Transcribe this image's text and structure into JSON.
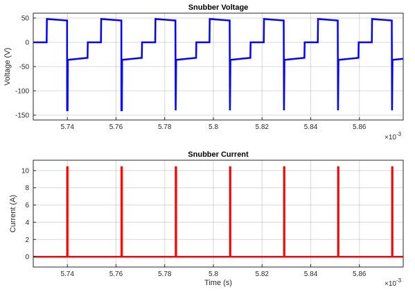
{
  "chart_data": [
    {
      "type": "line",
      "title": "Snubber Voltage",
      "xlabel": "",
      "ylabel": "Voltage (V)",
      "xlim": [
        5.726,
        5.878
      ],
      "ylim": [
        -160,
        60
      ],
      "x_multiplier_label": "×10",
      "x_multiplier_exp": "-3",
      "xticks": [
        5.74,
        5.76,
        5.78,
        5.8,
        5.82,
        5.84,
        5.86
      ],
      "xtick_labels": [
        "5.74",
        "5.76",
        "5.78",
        "5.8",
        "5.82",
        "5.84",
        "5.86"
      ],
      "yticks": [
        50,
        0,
        -50,
        -100,
        -150
      ],
      "ytick_labels": [
        "50",
        "0",
        "-50",
        "-100",
        "-150"
      ],
      "grid": true,
      "color": "#0000ff",
      "series": [
        {
          "x": [
            5.726,
            5.7315,
            5.7316,
            5.7398,
            5.7399,
            5.7399,
            5.7401,
            5.7402,
            5.7483,
            5.7484,
            5.7538,
            5.7539,
            5.7621,
            5.7622,
            5.7622,
            5.7624,
            5.7625,
            5.7706,
            5.7707,
            5.7761,
            5.7762,
            5.7844,
            5.7845,
            5.7845,
            5.7847,
            5.7848,
            5.7929,
            5.793,
            5.7984,
            5.7985,
            5.8067,
            5.8068,
            5.8068,
            5.807,
            5.8071,
            5.8152,
            5.8153,
            5.8207,
            5.8208,
            5.8289,
            5.829,
            5.829,
            5.8292,
            5.8293,
            5.8374,
            5.8375,
            5.8429,
            5.843,
            5.8511,
            5.8512,
            5.8512,
            5.8514,
            5.8515,
            5.8596,
            5.8597,
            5.8651,
            5.8652,
            5.8733,
            5.8734,
            5.8734,
            5.8736,
            5.8737,
            5.878
          ],
          "y": [
            0,
            0,
            48,
            45,
            45,
            -140,
            -140,
            -36,
            -32,
            0,
            0,
            48,
            45,
            45,
            -140,
            -140,
            -36,
            -32,
            0,
            0,
            48,
            45,
            -140,
            -140,
            -36,
            -36,
            -32,
            0,
            0,
            48,
            45,
            -140,
            -140,
            -36,
            -36,
            -32,
            0,
            0,
            48,
            45,
            -140,
            -140,
            -36,
            -36,
            -32,
            0,
            0,
            48,
            45,
            -140,
            -140,
            -36,
            -36,
            -32,
            0,
            0,
            48,
            45,
            -140,
            -140,
            -36,
            -36,
            -34
          ]
        }
      ]
    },
    {
      "type": "line",
      "title": "Snubber Current",
      "xlabel": "Time (s)",
      "ylabel": "Current (A)",
      "xlim": [
        5.726,
        5.878
      ],
      "ylim": [
        -1.2,
        11.2
      ],
      "x_multiplier_label": "×10",
      "x_multiplier_exp": "-3",
      "xticks": [
        5.74,
        5.76,
        5.78,
        5.8,
        5.82,
        5.84,
        5.86
      ],
      "xtick_labels": [
        "5.74",
        "5.76",
        "5.78",
        "5.8",
        "5.82",
        "5.84",
        "5.86"
      ],
      "yticks": [
        10,
        8,
        6,
        4,
        2,
        0
      ],
      "ytick_labels": [
        "10",
        "8",
        "6",
        "4",
        "2",
        "0"
      ],
      "grid": true,
      "color": "#ff0000",
      "series": [
        {
          "x": [
            5.726,
            5.7399,
            5.7399,
            5.7401,
            5.7401,
            5.7622,
            5.7622,
            5.7624,
            5.7624,
            5.7845,
            5.7845,
            5.7847,
            5.7847,
            5.8068,
            5.8068,
            5.807,
            5.807,
            5.829,
            5.829,
            5.8292,
            5.8292,
            5.8512,
            5.8512,
            5.8514,
            5.8514,
            5.8734,
            5.8734,
            5.8736,
            5.8736,
            5.878
          ],
          "y": [
            0,
            0,
            10.4,
            10.4,
            0,
            0,
            10.4,
            10.4,
            0,
            0,
            10.4,
            10.4,
            0,
            0,
            10.4,
            10.4,
            0,
            0,
            10.4,
            10.4,
            0,
            0,
            10.4,
            10.4,
            0,
            0,
            10.4,
            10.4,
            0,
            0
          ]
        }
      ]
    }
  ]
}
